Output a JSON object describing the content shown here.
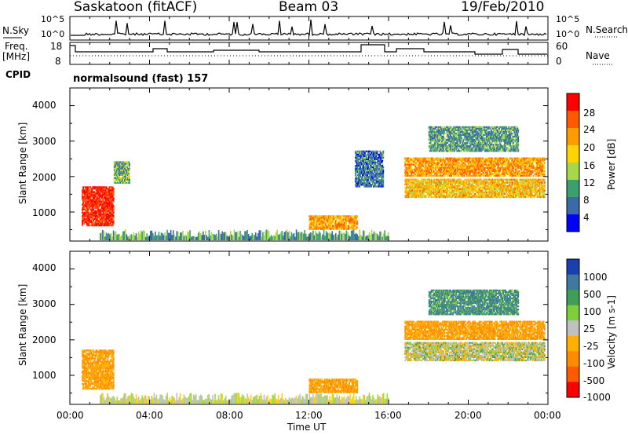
{
  "header": {
    "station": "Saskatoon (fitACF)",
    "beam": "Beam 03",
    "date": "19/Feb/2010"
  },
  "noise_panel": {
    "left_label": "N.Sky",
    "right_label": "N.Search",
    "left_ticks": [
      "10^5",
      "10^0"
    ],
    "right_ticks": [
      "10^5",
      "10^0"
    ]
  },
  "freq_panel": {
    "left_label_1": "Freq.",
    "left_label_2": "[MHz]",
    "right_label": "Nave",
    "left_ticks": [
      "18",
      "8"
    ],
    "right_ticks": [
      "60",
      "0"
    ]
  },
  "cpid": {
    "label": "CPID",
    "value": "normalsound (fast) 157"
  },
  "x_axis": {
    "label": "Time UT",
    "ticks": [
      "00:00",
      "04:00",
      "08:00",
      "12:00",
      "16:00",
      "20:00",
      "00:00"
    ]
  },
  "power_panel": {
    "ylabel": "Slant Range [km]",
    "y_ticks": [
      "4000",
      "3000",
      "2000",
      "1000"
    ],
    "colorbar_label": "Power [dB]",
    "colorbar_ticks": [
      "28",
      "24",
      "20",
      "16",
      "12",
      "8",
      "4"
    ],
    "colors": [
      "#ff0000",
      "#ff5a00",
      "#ff9c00",
      "#ffd400",
      "#a8d84a",
      "#3ca06e",
      "#3a6aa8",
      "#0000ff"
    ]
  },
  "velocity_panel": {
    "ylabel": "Slant Range [km]",
    "y_ticks": [
      "4000",
      "3000",
      "2000",
      "1000"
    ],
    "colorbar_label": "Velocity [m s-1]",
    "colorbar_ticks": [
      "1000",
      "500",
      "100",
      "25",
      "-25",
      "-100",
      "-500",
      "-1000"
    ],
    "colors": [
      "#1a3fb0",
      "#3f7a9e",
      "#3f9e5a",
      "#7ccf3a",
      "#c0c0c0",
      "#ffb000",
      "#ff8c00",
      "#ff5a00",
      "#ff0000"
    ]
  },
  "chart_data": {
    "type": "heatmap",
    "title": "Saskatoon (fitACF) Beam 03 19/Feb/2010",
    "xlabel": "Time UT",
    "ylabel": "Slant Range [km]",
    "x_range_hours": [
      0,
      24
    ],
    "y_range_km": [
      180,
      4500
    ],
    "power_regions": [
      {
        "t0": 0.6,
        "t1": 2.2,
        "r0": 600,
        "r1": 1700,
        "power_db": 27
      },
      {
        "t0": 2.2,
        "t1": 3.0,
        "r0": 1800,
        "r1": 2400,
        "power_db": 12
      },
      {
        "t0": 12.0,
        "t1": 14.4,
        "r0": 500,
        "r1": 900,
        "power_db": 20
      },
      {
        "t0": 14.3,
        "t1": 15.7,
        "r0": 1700,
        "r1": 2700,
        "power_db": 8
      },
      {
        "t0": 16.8,
        "t1": 23.8,
        "r0": 2000,
        "r1": 2500,
        "power_db": 20
      },
      {
        "t0": 16.8,
        "t1": 23.8,
        "r0": 1400,
        "r1": 1900,
        "power_db": 18
      },
      {
        "t0": 18.0,
        "t1": 22.5,
        "r0": 2700,
        "r1": 3400,
        "power_db": 10
      }
    ],
    "velocity_regions": [
      {
        "t0": 0.6,
        "t1": 2.2,
        "r0": 600,
        "r1": 1700,
        "velocity": -100
      },
      {
        "t0": 12.0,
        "t1": 14.4,
        "r0": 500,
        "r1": 900,
        "velocity": -100
      },
      {
        "t0": 16.8,
        "t1": 23.8,
        "r0": 1400,
        "r1": 1900,
        "velocity": 0
      },
      {
        "t0": 16.8,
        "t1": 23.8,
        "r0": 2000,
        "r1": 2500,
        "velocity": -100
      },
      {
        "t0": 18.0,
        "t1": 22.5,
        "r0": 2700,
        "r1": 3400,
        "velocity": 100
      }
    ]
  }
}
